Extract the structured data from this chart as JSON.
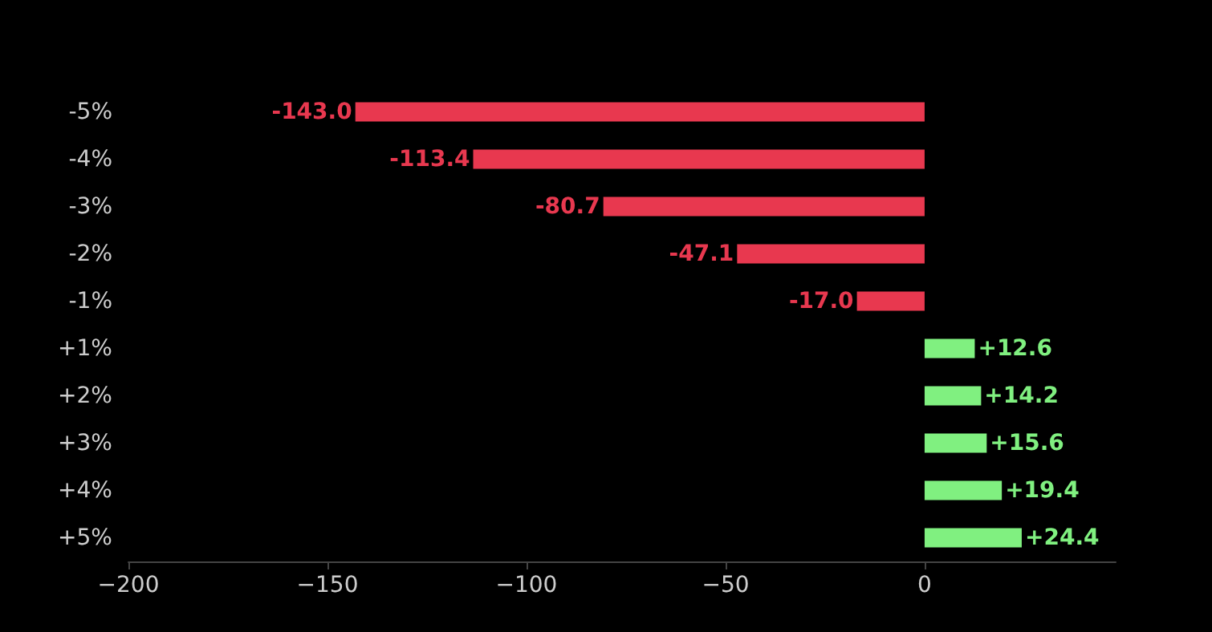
{
  "chart_data": {
    "type": "bar",
    "orientation": "horizontal",
    "categories": [
      "-5%",
      "-4%",
      "-3%",
      "-2%",
      "-1%",
      "+1%",
      "+2%",
      "+3%",
      "+4%",
      "+5%"
    ],
    "values": [
      -143.0,
      -113.4,
      -80.7,
      -47.1,
      -17.0,
      12.6,
      14.2,
      15.6,
      19.4,
      24.4
    ],
    "colors": [
      "#e8384f",
      "#e8384f",
      "#e8384f",
      "#e8384f",
      "#e8384f",
      "#80f080",
      "#80f080",
      "#80f080",
      "#80f080",
      "#80f080"
    ],
    "value_labels": [
      "-143.0",
      "-113.4",
      "-80.7",
      "-47.1",
      "-17.0",
      "+12.6",
      "+14.2",
      "+15.6",
      "+19.4",
      "+24.4"
    ],
    "xlim": [
      -200,
      48
    ],
    "xticks": [
      -200,
      -150,
      -100,
      -50,
      0
    ]
  }
}
